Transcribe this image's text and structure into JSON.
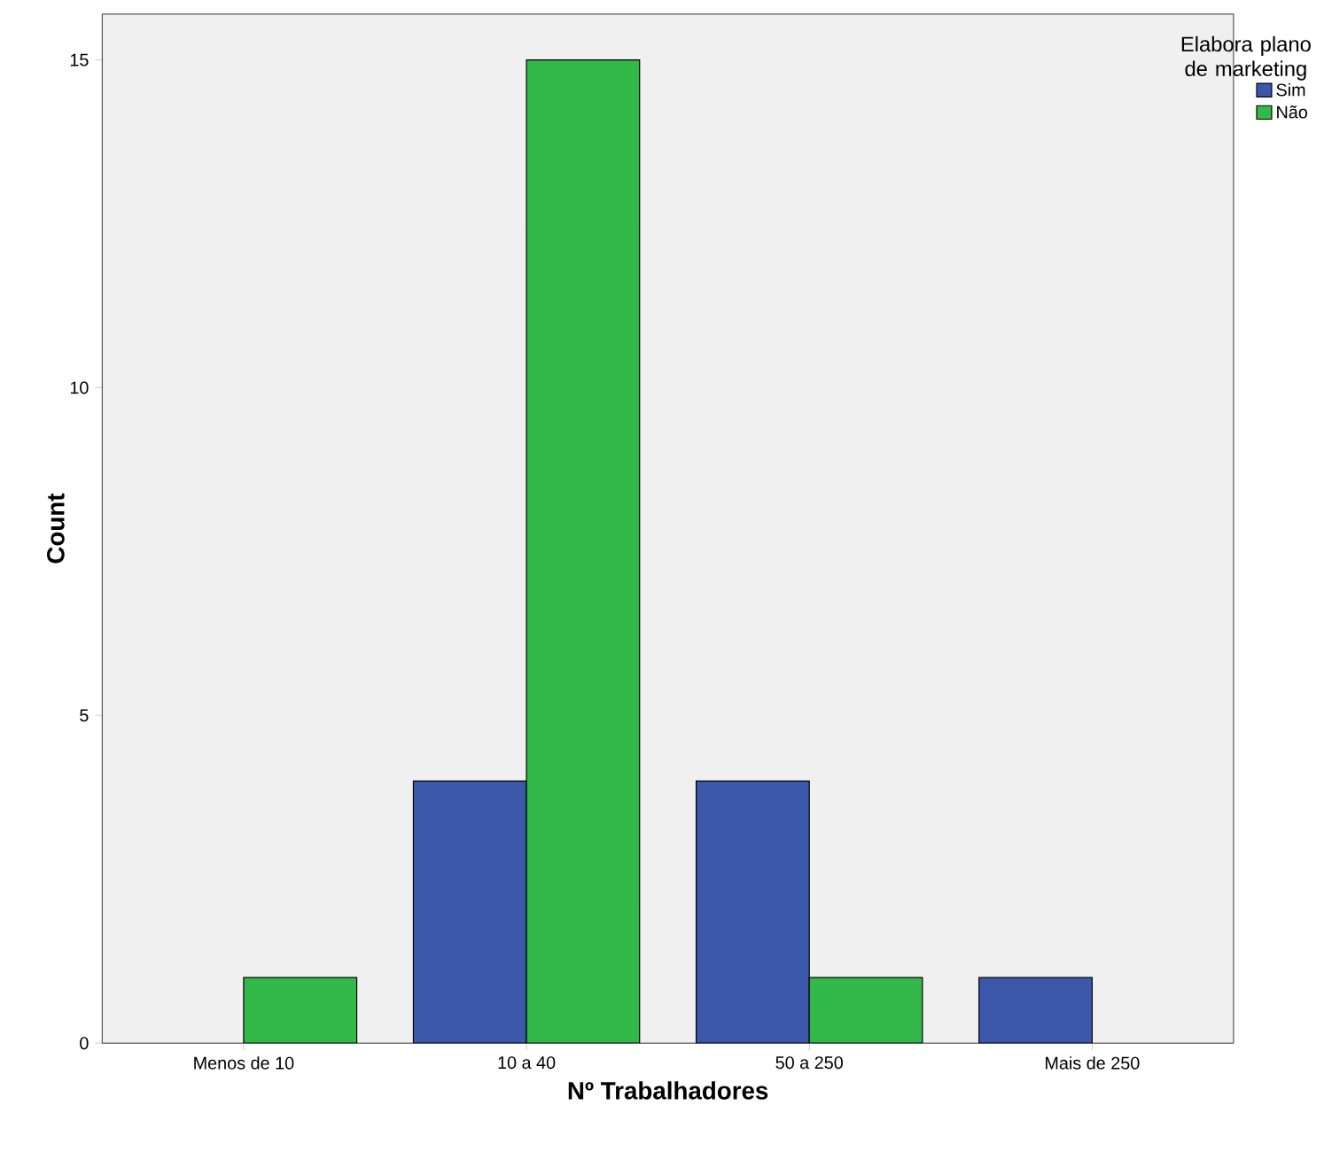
{
  "chart_data": {
    "type": "bar",
    "xlabel": "Nº Trabalhadores",
    "ylabel": "Count",
    "legend_title": "Elabora plano de marketing",
    "categories": [
      "Menos de 10",
      "10 a 40",
      "50 a 250",
      "Mais de 250"
    ],
    "series": [
      {
        "name": "Sim",
        "color": "#3c58aa",
        "values": [
          null,
          4,
          4,
          1
        ]
      },
      {
        "name": "Não",
        "color": "#33b84a",
        "values": [
          1,
          15,
          1,
          null
        ]
      }
    ],
    "ylim": [
      0,
      15.7
    ],
    "yticks": [
      0,
      5,
      10,
      15
    ],
    "grid": false,
    "legend": "top right"
  }
}
